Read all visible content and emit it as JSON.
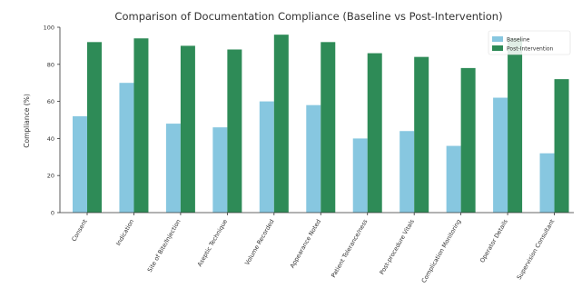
{
  "chart_data": {
    "type": "bar",
    "title": "Comparison of Documentation Compliance (Baseline vs Post-Intervention)",
    "xlabel": "",
    "ylabel": "Compliance (%)",
    "ylim": [
      0,
      100
    ],
    "yticks": [
      0,
      20,
      40,
      60,
      80,
      100
    ],
    "grid": false,
    "legend_position": "top-right",
    "categories": [
      "Consent",
      "Indication",
      "Site of Bite/Injection",
      "Aseptic Technique",
      "Volume Recorded",
      "Appearance Noted",
      "Patient Tolerance/ness",
      "Post-procedure Vitals",
      "Complication Monitoring",
      "Operator Details",
      "Supervision Consultant"
    ],
    "series": [
      {
        "name": "Baseline",
        "color": "#87c7e0",
        "values": [
          52,
          70,
          48,
          46,
          60,
          58,
          40,
          44,
          36,
          62,
          32
        ]
      },
      {
        "name": "Post-Intervention",
        "color": "#2e8b57",
        "values": [
          92,
          94,
          90,
          88,
          96,
          92,
          86,
          84,
          78,
          94,
          72
        ]
      }
    ]
  }
}
